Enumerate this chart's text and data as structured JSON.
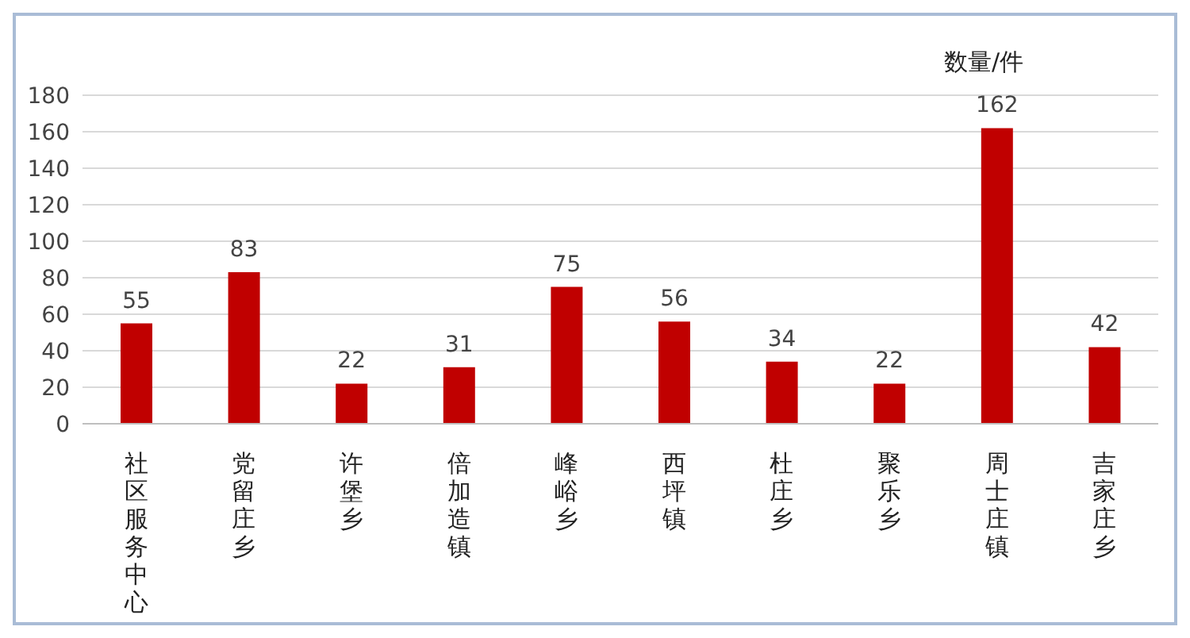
{
  "chart_data": {
    "type": "bar",
    "ylabel": "数量/件",
    "categories": [
      "社区服务中心",
      "党留庄乡",
      "许堡乡",
      "倍加造镇",
      "峰峪乡",
      "西坪镇",
      "杜庄乡",
      "聚乐乡",
      "周士庄镇",
      "吉家庄乡"
    ],
    "values": [
      55,
      83,
      22,
      31,
      75,
      56,
      34,
      22,
      162,
      42
    ],
    "color": "#c00000",
    "ylim": [
      0,
      180
    ],
    "yticks": [
      0,
      20,
      40,
      60,
      80,
      100,
      120,
      140,
      160,
      180
    ],
    "grid": "y",
    "data_labels": true
  }
}
